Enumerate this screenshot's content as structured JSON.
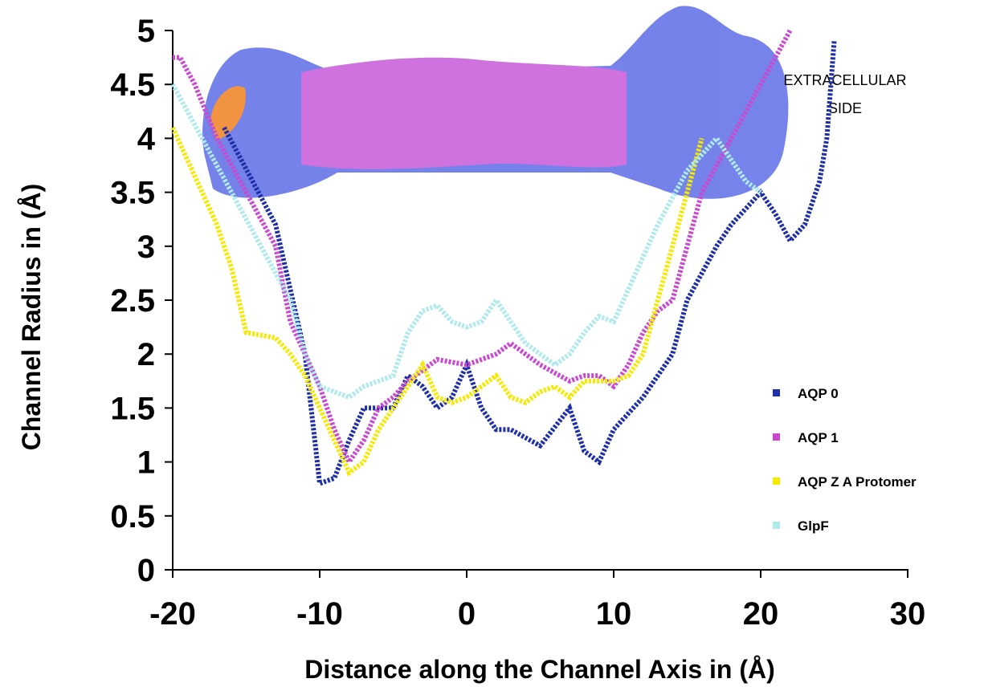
{
  "chart_data": {
    "type": "line",
    "xlabel": "Distance along the Channel Axis in (Å)",
    "ylabel": "Channel Radius in (Å)",
    "annotation": "EXTRACELLULAR SIDE",
    "xlim": [
      -20,
      30
    ],
    "xticks": [
      -20,
      -10,
      0,
      10,
      20,
      30
    ],
    "ylim": [
      0,
      5
    ],
    "yticks": [
      0,
      0.5,
      1,
      1.5,
      2,
      2.5,
      3,
      3.5,
      4,
      4.5,
      5
    ],
    "series": [
      {
        "name": "AQP 0",
        "color": "#1f2fa8",
        "x": [
          -16.5,
          -13,
          -11,
          -10,
          -9,
          -8,
          -7,
          -5,
          -4,
          -3,
          -2,
          -1,
          0,
          1,
          2,
          3,
          5,
          7,
          8,
          9,
          10,
          12,
          14,
          15,
          17,
          18,
          20,
          21,
          22,
          23,
          24,
          24.5,
          25
        ],
        "values": [
          4.1,
          3.2,
          2.0,
          0.8,
          0.85,
          1.2,
          1.5,
          1.5,
          1.8,
          1.7,
          1.5,
          1.6,
          1.9,
          1.5,
          1.3,
          1.3,
          1.15,
          1.5,
          1.1,
          1.0,
          1.3,
          1.6,
          2.0,
          2.5,
          3.0,
          3.2,
          3.5,
          3.3,
          3.05,
          3.2,
          3.6,
          4.0,
          4.9
        ]
      },
      {
        "name": "AQP 1",
        "color": "#c84ad0",
        "x": [
          -20,
          -19.5,
          -18.5,
          -17,
          -15,
          -13,
          -12,
          -11,
          -10,
          -9,
          -8,
          -7,
          -6,
          -5,
          -4,
          -3,
          -2,
          0,
          1,
          2,
          3,
          4,
          5,
          7,
          8,
          9,
          10,
          11,
          12,
          13,
          14,
          15,
          16,
          18,
          20,
          22
        ],
        "values": [
          4.75,
          4.75,
          4.5,
          4.0,
          3.5,
          3.0,
          2.3,
          2.0,
          1.7,
          1.3,
          1.0,
          1.2,
          1.5,
          1.6,
          1.75,
          1.85,
          1.95,
          1.9,
          1.95,
          2.0,
          2.1,
          2.0,
          1.9,
          1.75,
          1.8,
          1.8,
          1.7,
          1.9,
          2.2,
          2.4,
          2.5,
          3.0,
          3.5,
          4.0,
          4.5,
          5.0
        ]
      },
      {
        "name": "AQP Z A Protomer",
        "color": "#f5e900",
        "x": [
          -20,
          -19,
          -18,
          -17,
          -16,
          -15,
          -13,
          -12,
          -11,
          -10,
          -9,
          -8,
          -7,
          -6,
          -5,
          -4,
          -3,
          -2,
          -1,
          0,
          1,
          2,
          3,
          4,
          5,
          6,
          7,
          8,
          10,
          11,
          12,
          13,
          14,
          15,
          16
        ],
        "values": [
          4.1,
          3.8,
          3.5,
          3.2,
          2.8,
          2.2,
          2.15,
          2.0,
          1.8,
          1.5,
          1.2,
          0.9,
          1.0,
          1.3,
          1.5,
          1.7,
          1.9,
          1.6,
          1.55,
          1.6,
          1.7,
          1.8,
          1.6,
          1.55,
          1.65,
          1.7,
          1.6,
          1.75,
          1.75,
          1.8,
          2.0,
          2.5,
          3.0,
          3.5,
          4.0
        ]
      },
      {
        "name": "GlpF",
        "color": "#aee9ec",
        "x": [
          -20,
          -18,
          -16,
          -14,
          -12,
          -11,
          -10,
          -9,
          -8,
          -7,
          -6,
          -5,
          -4,
          -3,
          -2,
          -1,
          0,
          1,
          2,
          3,
          4,
          5,
          6,
          7,
          8,
          9,
          10,
          11,
          12,
          13,
          15,
          17,
          19,
          20
        ],
        "values": [
          4.5,
          4.0,
          3.5,
          3.0,
          2.5,
          2.0,
          1.7,
          1.65,
          1.6,
          1.7,
          1.75,
          1.8,
          2.2,
          2.4,
          2.45,
          2.3,
          2.25,
          2.3,
          2.5,
          2.3,
          2.1,
          2.0,
          1.9,
          2.0,
          2.2,
          2.35,
          2.3,
          2.6,
          2.9,
          3.2,
          3.7,
          4.0,
          3.6,
          3.5
        ]
      }
    ]
  }
}
